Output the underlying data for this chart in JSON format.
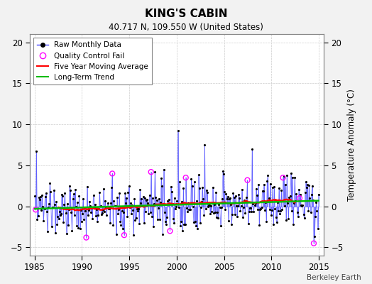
{
  "title": "KING'S CABIN",
  "subtitle": "40.717 N, 109.550 W (United States)",
  "ylabel": "Temperature Anomaly (°C)",
  "watermark": "Berkeley Earth",
  "xlim": [
    1984.5,
    2015.5
  ],
  "ylim": [
    -6,
    21
  ],
  "yticks": [
    -5,
    0,
    5,
    10,
    15,
    20
  ],
  "xticks": [
    1985,
    1990,
    1995,
    2000,
    2005,
    2010,
    2015
  ],
  "line_color": "#4444ff",
  "dot_color": "#000000",
  "ma_color": "#ff0000",
  "trend_color": "#00bb00",
  "qc_color": "#ff00ff",
  "background": "#f2f2f2",
  "grid_color": "#cccccc"
}
